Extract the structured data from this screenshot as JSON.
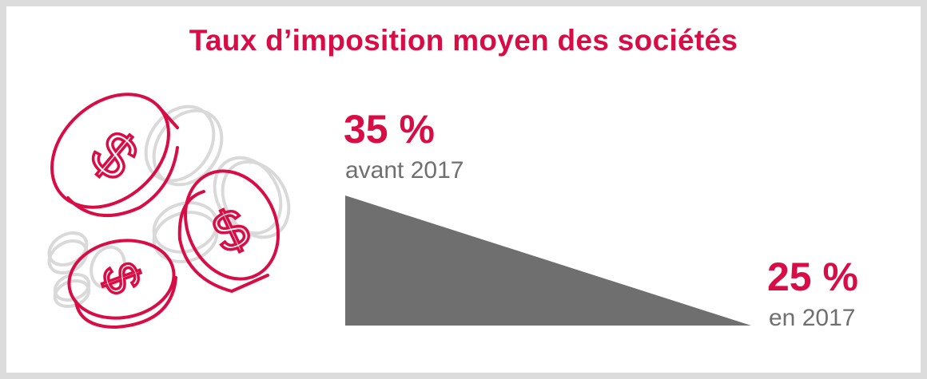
{
  "title": "Taux d’imposition moyen des sociétés",
  "before": {
    "value": "35 %",
    "label": "avant 2017"
  },
  "after": {
    "value": "25 %",
    "label": "en 2017"
  },
  "colors": {
    "accent": "#d90d45",
    "wedge": "#6f6f6f",
    "coin_gray": "#d9d9d9",
    "frame": "#dcdcdc"
  },
  "illustration": "coins-icon"
}
